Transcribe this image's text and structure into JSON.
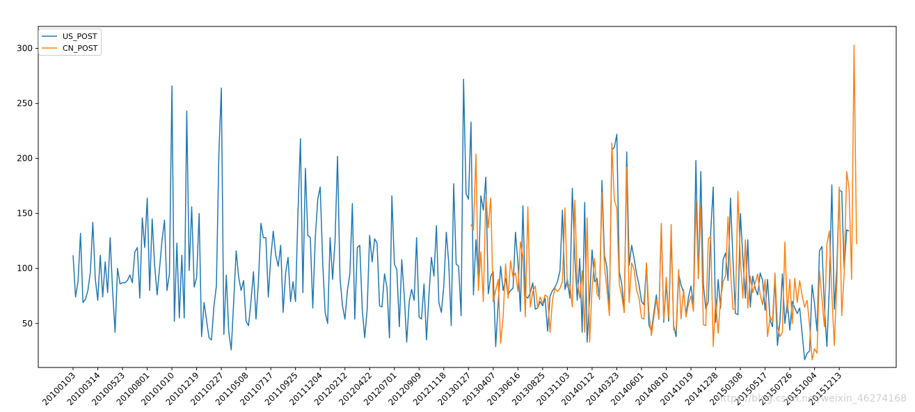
{
  "chart_data": {
    "type": "line",
    "title": "",
    "xlabel": "",
    "ylabel": "",
    "ylim": [
      10,
      320
    ],
    "y_ticks": [
      50,
      100,
      150,
      200,
      250,
      300
    ],
    "x_tick_labels": [
      "20100103",
      "20100314",
      "20100523",
      "20100801",
      "20101010",
      "20101219",
      "20110227",
      "20110508",
      "20110717",
      "20110925",
      "20111204",
      "20120212",
      "20120422",
      "20120701",
      "20120909",
      "20121118",
      "20130127",
      "20130407",
      "20130616",
      "20130825",
      "20131103",
      "20140112",
      "20140323",
      "20140601",
      "20140810",
      "20141019",
      "20141228",
      "20150308",
      "20150517",
      "20150726",
      "20151004",
      "20151213"
    ],
    "x_tick_step_weeks": 10,
    "legend_position": "top-left",
    "grid": false,
    "series": [
      {
        "name": "US_POST",
        "color": "#1f77b4",
        "start_week": 0,
        "values": [
          112,
          74,
          88,
          132,
          69,
          72,
          80,
          97,
          142,
          90,
          71,
          112,
          74,
          106,
          78,
          128,
          80,
          42,
          100,
          86,
          87,
          87,
          89,
          94,
          87,
          115,
          119,
          73,
          146,
          119,
          164,
          80,
          145,
          103,
          76,
          100,
          126,
          144,
          80,
          95,
          266,
          52,
          123,
          55,
          112,
          55,
          243,
          98,
          156,
          83,
          92,
          150,
          38,
          69,
          53,
          37,
          35,
          66,
          84,
          205,
          264,
          40,
          94,
          42,
          26,
          70,
          116,
          92,
          80,
          89,
          52,
          48,
          70,
          97,
          54,
          88,
          141,
          128,
          128,
          74,
          110,
          134,
          112,
          102,
          121,
          60,
          96,
          110,
          70,
          88,
          70,
          150,
          218,
          78,
          191,
          130,
          128,
          64,
          128,
          163,
          174,
          105,
          60,
          50,
          128,
          90,
          125,
          202,
          92,
          66,
          54,
          80,
          95,
          159,
          54,
          119,
          121,
          63,
          37,
          63,
          130,
          106,
          127,
          123,
          66,
          65,
          95,
          83,
          37,
          166,
          104,
          99,
          47,
          108,
          75,
          33,
          70,
          81,
          71,
          128,
          56,
          54,
          86,
          35,
          76,
          110,
          93,
          139,
          69,
          60,
          84,
          133,
          105,
          48,
          177,
          104,
          102,
          57,
          272,
          168,
          163,
          233,
          76,
          126,
          90,
          166,
          153,
          183,
          77,
          93,
          97,
          29,
          69,
          102,
          80,
          91,
          76,
          80,
          82,
          133,
          105,
          61,
          157,
          75,
          73,
          78,
          87,
          63,
          64,
          70,
          66,
          73,
          43,
          75,
          80,
          83,
          88,
          98,
          153,
          81,
          90,
          73,
          173,
          110,
          71,
          109,
          42,
          160,
          33,
          73,
          117,
          88,
          91,
          72,
          180,
          112,
          101,
          62,
          208,
          210,
          222,
          97,
          86,
          60,
          206,
          103,
          121,
          109,
          95,
          85,
          70,
          67,
          104,
          49,
          43,
          60,
          76,
          54,
          140,
          51,
          86,
          52,
          130,
          48,
          38,
          95,
          85,
          78,
          58,
          74,
          84,
          67,
          198,
          91,
          188,
          86,
          63,
          70,
          133,
          174,
          51,
          90,
          64,
          108,
          114,
          89,
          164,
          108,
          59,
          58,
          150,
          110,
          73,
          126,
          65,
          93,
          82,
          76,
          96,
          89,
          62,
          90,
          53,
          47,
          91,
          30,
          52,
          95,
          50,
          70,
          44,
          70,
          64,
          59,
          64,
          40,
          17,
          23,
          25,
          85,
          68,
          43,
          116,
          120,
          65,
          29,
          83,
          176,
          63,
          100,
          171,
          170,
          99,
          135,
          134
        ]
      },
      {
        "name": "CN_POST",
        "color": "#ff7f0e",
        "start_week": 161,
        "values": [
          140,
          135,
          204,
          80,
          115,
          70,
          166,
          137,
          164,
          70,
          80,
          90,
          32,
          56,
          104,
          73,
          107,
          92,
          96,
          79,
          124,
          111,
          56,
          156,
          65,
          79,
          84,
          64,
          74,
          68,
          76,
          74,
          42,
          72,
          82,
          79,
          82,
          88,
          155,
          83,
          85,
          65,
          162,
          89,
          73,
          98,
          42,
          146,
          33,
          82,
          109,
          77,
          73,
          169,
          102,
          82,
          57,
          214,
          162,
          155,
          86,
          75,
          60,
          192,
          69,
          105,
          99,
          80,
          73,
          55,
          54,
          105,
          60,
          39,
          56,
          72,
          55,
          141,
          53,
          92,
          55,
          140,
          44,
          44,
          99,
          54,
          81,
          56,
          68,
          75,
          61,
          160,
          92,
          157,
          49,
          48,
          127,
          129,
          29,
          72,
          41,
          72,
          88,
          93,
          147,
          98,
          63,
          63,
          170,
          107,
          73,
          126,
          64,
          93,
          78,
          87,
          95,
          76,
          67,
          90,
          38,
          56,
          52,
          96,
          48,
          38,
          42,
          124,
          60,
          90,
          50,
          91,
          69,
          89,
          75,
          65,
          71,
          48,
          17,
          27,
          23,
          98,
          72,
          47,
          122,
          134,
          77,
          30,
          85,
          174,
          57,
          95,
          188,
          172,
          90,
          303,
          122
        ]
      }
    ]
  },
  "watermark": "https://blog.csdn.net/weixin_46274168"
}
